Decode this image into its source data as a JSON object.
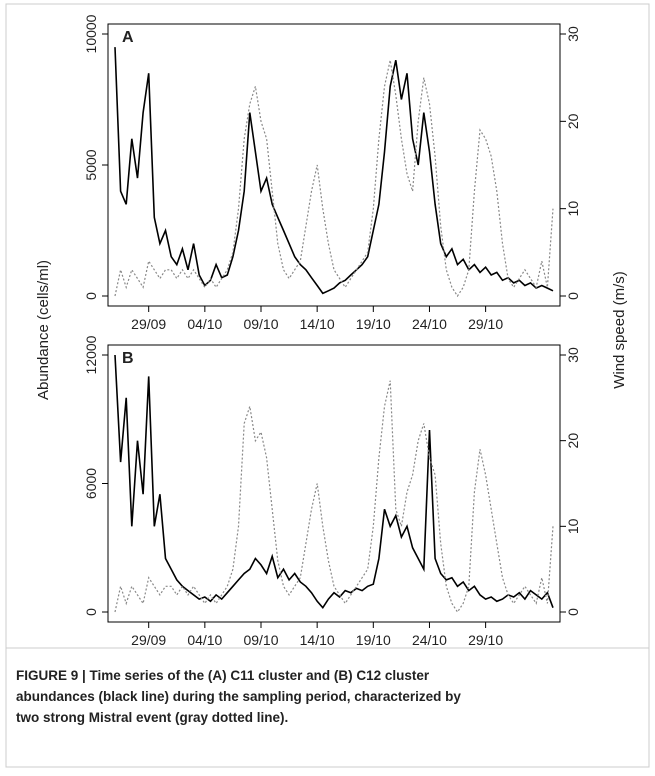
{
  "chart_data": [
    {
      "type": "line",
      "panel_label": "A",
      "x": [
        0,
        0.5,
        1,
        1.5,
        2,
        2.5,
        3,
        3.5,
        4,
        4.5,
        5,
        5.5,
        6,
        6.5,
        7,
        7.5,
        8,
        8.5,
        9,
        9.5,
        10,
        10.5,
        11,
        11.5,
        12,
        12.5,
        13,
        13.5,
        14,
        14.5,
        15,
        15.5,
        16,
        16.5,
        17,
        17.5,
        18,
        18.5,
        19,
        19.5,
        20,
        20.5,
        21,
        21.5,
        22,
        22.5,
        23,
        23.5,
        24,
        24.5,
        25,
        25.5,
        26,
        26.5,
        27,
        27.5,
        28,
        28.5,
        29,
        29.5,
        30,
        30.5,
        31,
        31.5,
        32,
        32.5,
        33,
        33.5,
        34,
        34.5,
        35,
        35.5,
        36,
        36.5,
        37,
        37.5,
        38,
        38.5,
        39
      ],
      "xlim": [
        0,
        39
      ],
      "xticks": [
        {
          "value": 3,
          "label": "29/09"
        },
        {
          "value": 8,
          "label": "04/10"
        },
        {
          "value": 13,
          "label": "09/10"
        },
        {
          "value": 18,
          "label": "14/10"
        },
        {
          "value": 23,
          "label": "19/10"
        },
        {
          "value": 28,
          "label": "24/10"
        },
        {
          "value": 33,
          "label": "29/10"
        }
      ],
      "ylim": [
        0,
        10000
      ],
      "yticks": [
        0,
        5000,
        10000
      ],
      "y2lim": [
        0,
        30
      ],
      "y2ticks": [
        0,
        10,
        20,
        30
      ],
      "series": [
        {
          "color": "#000000",
          "dash": false,
          "values": [
            9500,
            4000,
            3500,
            6000,
            4500,
            7000,
            8500,
            3000,
            2000,
            2500,
            1500,
            1200,
            1800,
            1000,
            2000,
            800,
            400,
            600,
            1200,
            700,
            800,
            1500,
            2500,
            4000,
            7000,
            5500,
            4000,
            4500,
            3500,
            3000,
            2500,
            2000,
            1500,
            1200,
            1000,
            700,
            400,
            100,
            200,
            300,
            500,
            600,
            800,
            1000,
            1200,
            1500,
            2500,
            3500,
            5500,
            8000,
            9000,
            7500,
            8500,
            6000,
            5000,
            7000,
            5500,
            3500,
            2000,
            1500,
            1800,
            1200,
            1400,
            1000,
            1200,
            900,
            1100,
            800,
            900,
            600,
            700,
            500,
            600,
            400,
            500,
            300,
            400,
            300,
            200
          ]
        },
        {
          "color": "#888888",
          "dash": true,
          "axis": "y2",
          "values": [
            0,
            3,
            1,
            3,
            2,
            1,
            4,
            3,
            2,
            3,
            3,
            2,
            3,
            2,
            3,
            2,
            1,
            2,
            1,
            2,
            3,
            5,
            10,
            18,
            22,
            24,
            20,
            18,
            12,
            6,
            3,
            2,
            3,
            4,
            8,
            12,
            15,
            10,
            6,
            3,
            2,
            1,
            2,
            3,
            4,
            5,
            10,
            18,
            24,
            27,
            23,
            18,
            14,
            12,
            20,
            25,
            22,
            16,
            8,
            3,
            1,
            0,
            1,
            3,
            12,
            19,
            18,
            16,
            12,
            6,
            2,
            1,
            2,
            3,
            2,
            1,
            4,
            1,
            10
          ]
        }
      ]
    },
    {
      "type": "line",
      "panel_label": "B",
      "x": [
        0,
        0.5,
        1,
        1.5,
        2,
        2.5,
        3,
        3.5,
        4,
        4.5,
        5,
        5.5,
        6,
        6.5,
        7,
        7.5,
        8,
        8.5,
        9,
        9.5,
        10,
        10.5,
        11,
        11.5,
        12,
        12.5,
        13,
        13.5,
        14,
        14.5,
        15,
        15.5,
        16,
        16.5,
        17,
        17.5,
        18,
        18.5,
        19,
        19.5,
        20,
        20.5,
        21,
        21.5,
        22,
        22.5,
        23,
        23.5,
        24,
        24.5,
        25,
        25.5,
        26,
        26.5,
        27,
        27.5,
        28,
        28.5,
        29,
        29.5,
        30,
        30.5,
        31,
        31.5,
        32,
        32.5,
        33,
        33.5,
        34,
        34.5,
        35,
        35.5,
        36,
        36.5,
        37,
        37.5,
        38,
        38.5,
        39
      ],
      "xlim": [
        0,
        39
      ],
      "xticks": [
        {
          "value": 3,
          "label": "29/09"
        },
        {
          "value": 8,
          "label": "04/10"
        },
        {
          "value": 13,
          "label": "09/10"
        },
        {
          "value": 18,
          "label": "14/10"
        },
        {
          "value": 23,
          "label": "19/10"
        },
        {
          "value": 28,
          "label": "24/10"
        },
        {
          "value": 33,
          "label": "29/10"
        }
      ],
      "ylim": [
        0,
        12000
      ],
      "yticks": [
        0,
        6000,
        12000
      ],
      "y2lim": [
        0,
        30
      ],
      "y2ticks": [
        0,
        10,
        20,
        30
      ],
      "series": [
        {
          "color": "#000000",
          "dash": false,
          "values": [
            12000,
            7000,
            10000,
            4000,
            8000,
            5500,
            11000,
            4000,
            5500,
            2500,
            2000,
            1500,
            1200,
            1000,
            800,
            600,
            700,
            500,
            800,
            600,
            900,
            1200,
            1500,
            1800,
            2000,
            2500,
            2200,
            1800,
            2600,
            1600,
            2000,
            1500,
            1800,
            1400,
            1200,
            900,
            500,
            200,
            600,
            900,
            700,
            1000,
            900,
            1100,
            1000,
            1200,
            1300,
            2500,
            4800,
            4000,
            4500,
            3500,
            4000,
            3000,
            2500,
            2000,
            8500,
            2500,
            1800,
            1500,
            1600,
            1200,
            1400,
            1000,
            1200,
            800,
            600,
            700,
            500,
            600,
            800,
            700,
            900,
            600,
            1000,
            800,
            600,
            900,
            200
          ]
        },
        {
          "color": "#888888",
          "dash": true,
          "axis": "y2",
          "values": [
            0,
            3,
            1,
            3,
            2,
            1,
            4,
            3,
            2,
            3,
            3,
            2,
            3,
            2,
            3,
            2,
            1,
            2,
            1,
            2,
            3,
            5,
            10,
            22,
            24,
            20,
            21,
            18,
            12,
            6,
            3,
            2,
            3,
            4,
            8,
            12,
            15,
            10,
            6,
            3,
            2,
            1,
            2,
            3,
            4,
            5,
            10,
            18,
            24,
            27,
            12,
            10,
            14,
            16,
            20,
            22,
            18,
            16,
            8,
            3,
            1,
            0,
            1,
            3,
            14,
            19,
            16,
            12,
            8,
            4,
            2,
            1,
            2,
            3,
            2,
            1,
            4,
            1,
            10
          ]
        }
      ]
    }
  ],
  "axis_labels": {
    "y": "Abundance (cells/ml)",
    "y2": "Wind speed (m/s)"
  },
  "caption": [
    "FIGURE 9 | Time series of the (A) C11 cluster and (B) C12 cluster",
    "abundances (black line) during the sampling period, characterized by",
    "two strong Mistral event (gray dotted line)."
  ]
}
